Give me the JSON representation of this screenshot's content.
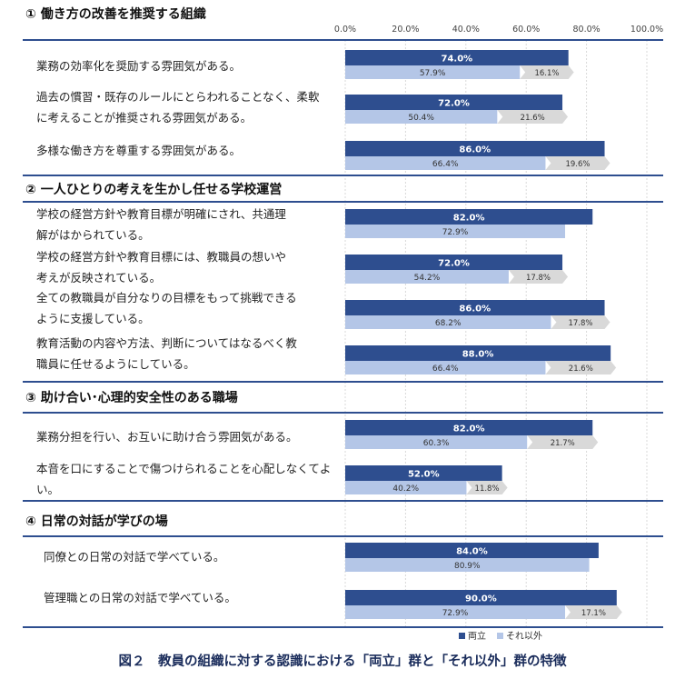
{
  "chart_data": {
    "type": "bar",
    "caption": "図２　教員の組織に対する認識における「両立」群と「それ以外」群の特徴",
    "x_ticks": [
      "0.0%",
      "20.0%",
      "40.0%",
      "60.0%",
      "80.0%",
      "100.0%"
    ],
    "xlim": [
      0,
      100
    ],
    "legend": [
      {
        "name": "両立",
        "color": "#2e4e8f"
      },
      {
        "name": "それ以外",
        "color": "#b4c6e7"
      }
    ],
    "diff_color": "#d9d9d9",
    "sections": [
      {
        "title": "①  働き方の改善を推奨する組織",
        "items": [
          {
            "lines": [
              "業務の効率化を奨励する雰囲気がある。"
            ],
            "ryoritsu": 74.0,
            "ryoritsu_label": "74.0%",
            "other": 57.9,
            "other_label": "57.9%",
            "diff_label": "16.1%"
          },
          {
            "lines": [
              "過去の慣習・既存のルールにとらわれることなく、柔軟",
              "に考えることが推奨される雰囲気がある。"
            ],
            "ryoritsu": 72.0,
            "ryoritsu_label": "72.0%",
            "other": 50.4,
            "other_label": "50.4%",
            "diff_label": "21.6%"
          },
          {
            "lines": [
              "多様な働き方を尊重する雰囲気がある。"
            ],
            "ryoritsu": 86.0,
            "ryoritsu_label": "86.0%",
            "other": 66.4,
            "other_label": "66.4%",
            "diff_label": "19.6%"
          }
        ]
      },
      {
        "title": "②  一人ひとりの考えを生かし任せる学校運営",
        "items": [
          {
            "lines": [
              "学校の経営方針や教育目標が明確にされ、共通理",
              "解がはかられている。"
            ],
            "ryoritsu": 82.0,
            "ryoritsu_label": "82.0%",
            "other": 72.9,
            "other_label": "72.9%",
            "diff_label": ""
          },
          {
            "lines": [
              "学校の経営方針や教育目標には、教職員の想いや",
              "考えが反映されている。"
            ],
            "ryoritsu": 72.0,
            "ryoritsu_label": "72.0%",
            "other": 54.2,
            "other_label": "54.2%",
            "diff_label": "17.8%"
          },
          {
            "lines": [
              "全ての教職員が自分なりの目標をもって挑戦できる",
              "ように支援している。"
            ],
            "ryoritsu": 86.0,
            "ryoritsu_label": "86.0%",
            "other": 68.2,
            "other_label": "68.2%",
            "diff_label": "17.8%"
          },
          {
            "lines": [
              "教育活動の内容や方法、判断についてはなるべく教",
              "職員に任せるようにしている。"
            ],
            "ryoritsu": 88.0,
            "ryoritsu_label": "88.0%",
            "other": 66.4,
            "other_label": "66.4%",
            "diff_label": "21.6%"
          }
        ]
      },
      {
        "title": "③  助け合い･心理的安全性のある職場",
        "items": [
          {
            "lines": [
              "業務分担を行い、お互いに助け合う雰囲気がある。"
            ],
            "ryoritsu": 82.0,
            "ryoritsu_label": "82.0%",
            "other": 60.3,
            "other_label": "60.3%",
            "diff_label": "21.7%"
          },
          {
            "lines": [
              "本音を口にすることで傷つけられることを心配しなくてよ",
              "い。"
            ],
            "ryoritsu": 52.0,
            "ryoritsu_label": "52.0%",
            "other": 40.2,
            "other_label": "40.2%",
            "diff_label": "11.8%"
          }
        ]
      },
      {
        "title": "④  日常の対話が学びの場",
        "items": [
          {
            "lines": [
              "同僚との日常の対話で学べている。"
            ],
            "ryoritsu": 84.0,
            "ryoritsu_label": "84.0%",
            "other": 80.9,
            "other_label": "80.9%",
            "diff_label": ""
          },
          {
            "lines": [
              "管理職との日常の対話で学べている。"
            ],
            "ryoritsu": 90.0,
            "ryoritsu_label": "90.0%",
            "other": 72.9,
            "other_label": "72.9%",
            "diff_label": "17.1%"
          }
        ]
      }
    ]
  }
}
